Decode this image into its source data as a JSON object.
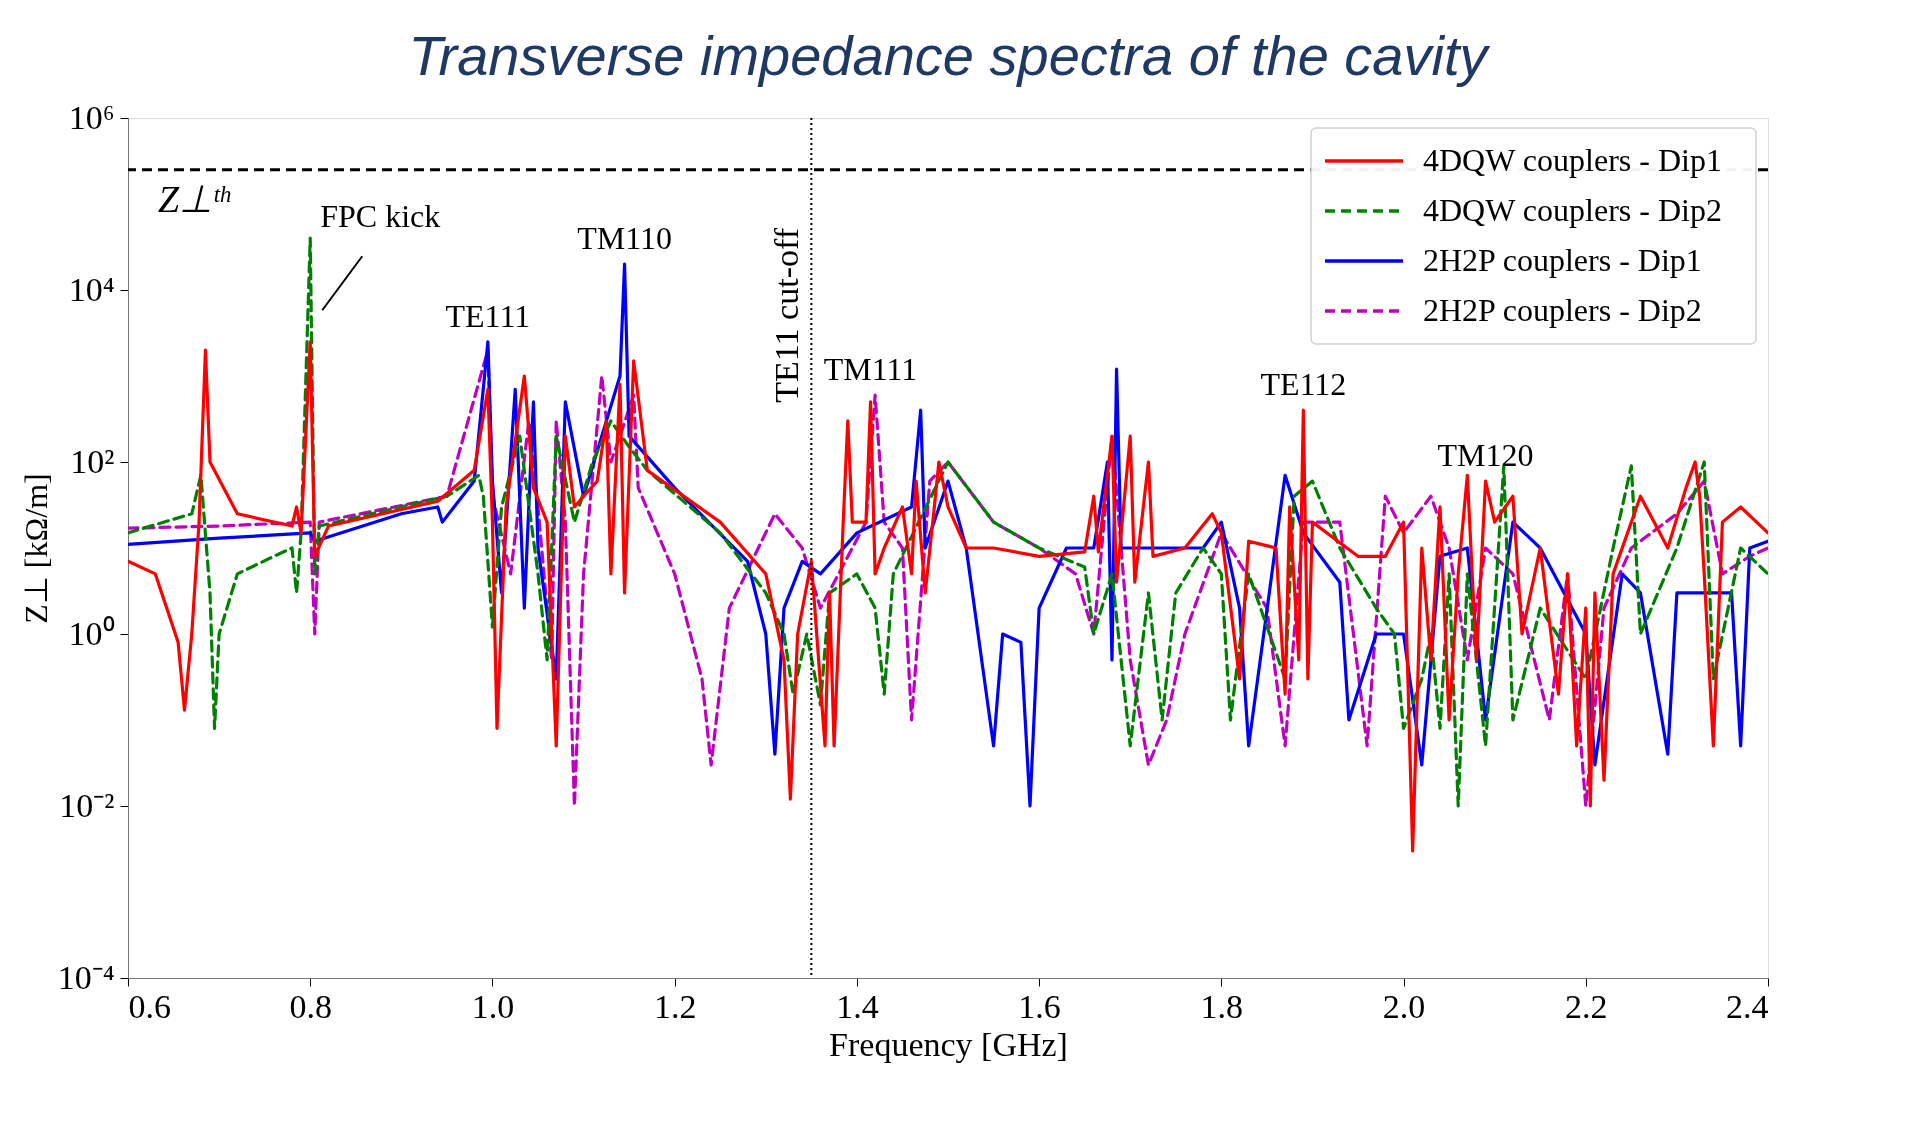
{
  "chart_data": {
    "type": "line",
    "title": "Transverse impedance spectra of the cavity",
    "xlabel": "Frequency [GHz]",
    "ylabel": "Z⊥ [kΩ/m]",
    "log": "y",
    "grid": false,
    "legend": "top right",
    "marker": "none",
    "xlim": [
      0.6,
      2.4
    ],
    "xticks": [
      0.6,
      0.8,
      {
        "value": 1.0,
        "label": "1.0"
      },
      1.2,
      1.4,
      1.6,
      1.8,
      {
        "value": 2.0,
        "label": "2.0"
      },
      2.2,
      2.4
    ],
    "ylim": [
      0.0001,
      1000000
    ],
    "yticks": [
      {
        "value": 0.0001,
        "label": "10⁻⁴"
      },
      {
        "value": 0.01,
        "label": "10⁻²"
      },
      {
        "value": 1,
        "label": "10⁰"
      },
      {
        "value": 100,
        "label": "10²"
      },
      {
        "value": 10000,
        "label": "10⁴"
      },
      {
        "value": 1000000,
        "label": "10⁶"
      }
    ],
    "series": [
      {
        "name": "4DQW couplers - Dip1",
        "color": "#ff0000",
        "line_style": "solid",
        "x": [
          0.6,
          0.63,
          0.655,
          0.662,
          0.67,
          0.678,
          0.685,
          0.69,
          0.72,
          0.78,
          0.785,
          0.79,
          0.8,
          0.805,
          0.82,
          0.94,
          0.98,
          0.995,
          1.0,
          1.005,
          1.015,
          1.035,
          1.045,
          1.06,
          1.07,
          1.08,
          1.09,
          1.1,
          1.115,
          1.125,
          1.13,
          1.14,
          1.145,
          1.155,
          1.17,
          1.25,
          1.3,
          1.32,
          1.327,
          1.335,
          1.35,
          1.365,
          1.37,
          1.375,
          1.385,
          1.39,
          1.395,
          1.41,
          1.415,
          1.42,
          1.43,
          1.45,
          1.46,
          1.465,
          1.475,
          1.485,
          1.49,
          1.5,
          1.52,
          1.55,
          1.6,
          1.65,
          1.66,
          1.665,
          1.68,
          1.685,
          1.7,
          1.705,
          1.72,
          1.725,
          1.76,
          1.79,
          1.8,
          1.82,
          1.83,
          1.86,
          1.87,
          1.875,
          1.885,
          1.89,
          1.895,
          1.9,
          1.95,
          1.98,
          2.0,
          2.01,
          2.02,
          2.03,
          2.04,
          2.05,
          2.06,
          2.07,
          2.08,
          2.09,
          2.1,
          2.12,
          2.13,
          2.15,
          2.17,
          2.18,
          2.19,
          2.2,
          2.205,
          2.21,
          2.22,
          2.23,
          2.26,
          2.29,
          2.31,
          2.32,
          2.325,
          2.33,
          2.34,
          2.35,
          2.37,
          2.4
        ],
        "values": [
          7,
          5,
          0.8,
          0.13,
          1,
          20,
          2000,
          100,
          25,
          18,
          30,
          15,
          2500,
          8,
          18,
          35,
          80,
          700,
          20,
          0.08,
          30,
          1000,
          50,
          20,
          0.05,
          200,
          30,
          40,
          60,
          300,
          5,
          800,
          3,
          1500,
          80,
          20,
          5,
          0.5,
          0.012,
          1,
          7,
          0.05,
          3,
          0.05,
          20,
          300,
          20,
          20,
          500,
          5,
          10,
          30,
          5,
          60,
          3,
          30,
          100,
          30,
          10,
          10,
          8,
          9,
          40,
          9,
          200,
          4,
          200,
          4,
          100,
          8,
          10,
          25,
          15,
          0.3,
          12,
          10,
          0.2,
          30,
          0.5,
          400,
          0.3,
          20,
          8,
          8,
          20,
          0.003,
          10,
          0.5,
          30,
          0.1,
          5,
          70,
          0.5,
          60,
          20,
          40,
          1,
          10,
          0.2,
          5,
          0.05,
          2,
          0.01,
          3,
          0.02,
          5,
          40,
          10,
          50,
          100,
          40,
          5,
          0.05,
          20,
          30,
          15
        ]
      },
      {
        "name": "4DQW couplers - Dip2",
        "color": "#008000",
        "line_style": "dashed",
        "x": [
          0.6,
          0.67,
          0.68,
          0.69,
          0.695,
          0.7,
          0.72,
          0.76,
          0.78,
          0.785,
          0.79,
          0.8,
          0.805,
          0.81,
          0.95,
          0.985,
          0.99,
          1.0,
          1.01,
          1.03,
          1.05,
          1.06,
          1.07,
          1.09,
          1.11,
          1.13,
          1.15,
          1.17,
          1.25,
          1.3,
          1.32,
          1.33,
          1.345,
          1.36,
          1.37,
          1.4,
          1.42,
          1.43,
          1.44,
          1.5,
          1.55,
          1.6,
          1.65,
          1.66,
          1.68,
          1.7,
          1.72,
          1.735,
          1.75,
          1.78,
          1.8,
          1.81,
          1.83,
          1.87,
          1.88,
          1.9,
          1.93,
          1.97,
          1.99,
          2.0,
          2.02,
          2.03,
          2.04,
          2.05,
          2.06,
          2.07,
          2.09,
          2.11,
          2.12,
          2.15,
          2.2,
          2.23,
          2.25,
          2.26,
          2.3,
          2.33,
          2.34,
          2.37,
          2.4
        ],
        "values": [
          15,
          25,
          70,
          3,
          0.08,
          1,
          5,
          8,
          10,
          3,
          15,
          40000,
          5,
          18,
          40,
          70,
          40,
          1.2,
          30,
          200,
          5,
          0.5,
          200,
          20,
          100,
          300,
          150,
          80,
          15,
          3,
          1,
          0.2,
          1,
          0.15,
          3,
          5,
          2,
          0.2,
          5,
          100,
          20,
          10,
          6,
          1,
          5,
          0.05,
          3,
          0.1,
          3,
          10,
          5,
          0.1,
          5,
          0.3,
          40,
          60,
          10,
          2,
          1,
          0.08,
          0.3,
          1,
          0.08,
          5,
          0.01,
          5,
          0.05,
          90,
          0.1,
          2,
          0.3,
          10,
          90,
          1,
          10,
          100,
          0.3,
          10,
          5
        ]
      },
      {
        "name": "2H2P couplers - Dip1",
        "color": "#0000ff",
        "line_style": "solid",
        "x": [
          0.6,
          0.7,
          0.8,
          0.805,
          0.9,
          0.94,
          0.945,
          0.98,
          0.995,
          1.0,
          1.01,
          1.025,
          1.035,
          1.045,
          1.05,
          1.07,
          1.08,
          1.1,
          1.14,
          1.145,
          1.15,
          1.2,
          1.28,
          1.3,
          1.31,
          1.32,
          1.34,
          1.36,
          1.4,
          1.46,
          1.47,
          1.475,
          1.5,
          1.52,
          1.55,
          1.56,
          1.58,
          1.59,
          1.6,
          1.63,
          1.66,
          1.675,
          1.68,
          1.685,
          1.69,
          1.72,
          1.78,
          1.8,
          1.82,
          1.83,
          1.87,
          1.89,
          1.93,
          1.94,
          1.97,
          2.0,
          2.02,
          2.04,
          2.07,
          2.09,
          2.12,
          2.15,
          2.2,
          2.21,
          2.24,
          2.26,
          2.29,
          2.3,
          2.33,
          2.36,
          2.37,
          2.38,
          2.4
        ],
        "values": [
          11,
          13,
          15,
          12,
          25,
          30,
          20,
          60,
          2500,
          60,
          3,
          700,
          2,
          500,
          10,
          0.3,
          500,
          40,
          1000,
          20000,
          200,
          50,
          7,
          1,
          0.04,
          2,
          7,
          5,
          15,
          30,
          400,
          10,
          60,
          10,
          0.05,
          1,
          0.8,
          0.01,
          2,
          10,
          10,
          100,
          0.5,
          1200,
          10,
          10,
          10,
          20,
          2,
          0.05,
          70,
          15,
          4,
          0.1,
          1,
          1,
          0.03,
          8,
          10,
          0.1,
          20,
          10,
          1,
          0.03,
          5,
          3,
          0.04,
          3,
          3,
          3,
          0.05,
          10,
          12
        ]
      },
      {
        "name": "2H2P couplers - Dip2",
        "color": "#c000c0",
        "line_style": "dashed",
        "x": [
          0.6,
          0.7,
          0.8,
          0.805,
          0.81,
          0.95,
          0.995,
          1.0,
          1.02,
          1.04,
          1.05,
          1.065,
          1.07,
          1.08,
          1.09,
          1.1,
          1.12,
          1.13,
          1.14,
          1.155,
          1.16,
          1.2,
          1.23,
          1.24,
          1.26,
          1.31,
          1.34,
          1.36,
          1.38,
          1.41,
          1.42,
          1.43,
          1.45,
          1.46,
          1.48,
          1.5,
          1.55,
          1.6,
          1.64,
          1.66,
          1.68,
          1.7,
          1.72,
          1.74,
          1.76,
          1.8,
          1.85,
          1.87,
          1.89,
          1.93,
          1.96,
          1.98,
          2.0,
          2.03,
          2.05,
          2.07,
          2.09,
          2.12,
          2.16,
          2.18,
          2.2,
          2.22,
          2.25,
          2.3,
          2.33,
          2.35,
          2.38,
          2.4
        ],
        "values": [
          17,
          18,
          20,
          1,
          20,
          40,
          2000,
          40,
          5,
          300,
          30,
          0.5,
          300,
          20,
          0.01,
          5,
          1000,
          100,
          200,
          600,
          50,
          5,
          0.3,
          0.03,
          2,
          25,
          10,
          2,
          5,
          20,
          600,
          20,
          10,
          0.1,
          60,
          100,
          20,
          10,
          5,
          1,
          200,
          0.5,
          0.03,
          0.1,
          1,
          15,
          2,
          0.05,
          20,
          20,
          0.05,
          40,
          15,
          40,
          10,
          0.5,
          10,
          5,
          0.1,
          5,
          0.01,
          2,
          10,
          25,
          60,
          5,
          8,
          10
        ]
      }
    ],
    "ref_lines": [
      {
        "axis": "y",
        "value": 250000,
        "label": "Z⊥ᵗʰ",
        "color": "#000000",
        "line_style": "dashed"
      },
      {
        "axis": "x",
        "value": 1.35,
        "label": "TE11 cut-off",
        "color": "#000000",
        "line_style": "dotted"
      }
    ],
    "annotations": [
      {
        "text": "FPC kick",
        "x": 0.8,
        "y": 40000
      },
      {
        "text": "TE111",
        "x": 0.995,
        "y": 2500
      },
      {
        "text": "TM110",
        "x": 1.145,
        "y": 20000
      },
      {
        "text": "TM111",
        "x": 1.415,
        "y": 600
      },
      {
        "text": "TE112",
        "x": 1.89,
        "y": 400
      },
      {
        "text": "TM120",
        "x": 2.09,
        "y": 60
      }
    ]
  }
}
